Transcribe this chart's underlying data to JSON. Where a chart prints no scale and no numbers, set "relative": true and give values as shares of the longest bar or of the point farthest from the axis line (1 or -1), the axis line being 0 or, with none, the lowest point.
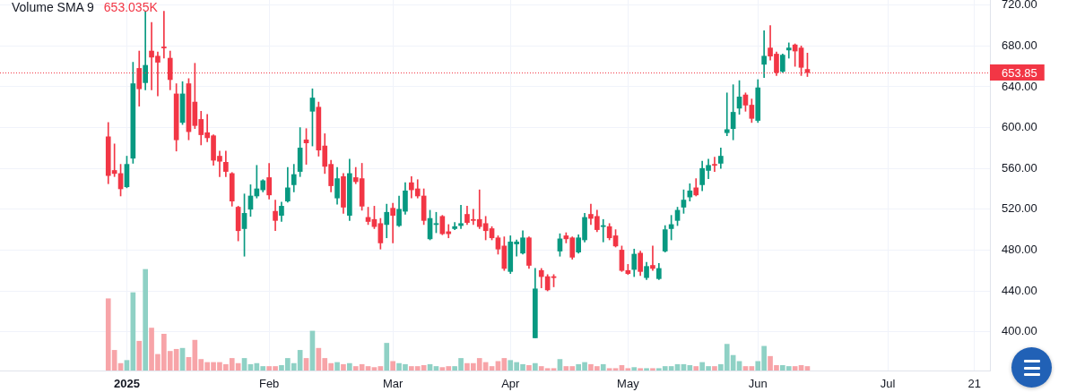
{
  "chart_data": [
    {
      "type": "candlestick",
      "categories": [
        null,
        null,
        null,
        null,
        null,
        null,
        null,
        null,
        null,
        null,
        null,
        null,
        null,
        null,
        null,
        null,
        null,
        null,
        null,
        null,
        "2025",
        null,
        null,
        null,
        null,
        null,
        null,
        null,
        null,
        null,
        null,
        null,
        null,
        null,
        null,
        null,
        null,
        null,
        null,
        null,
        null,
        null,
        null,
        "Feb",
        null,
        null,
        null,
        null,
        null,
        null,
        null,
        null,
        null,
        null,
        null,
        null,
        null,
        null,
        null,
        null,
        null,
        null,
        null,
        "Mar",
        null,
        null,
        null,
        null,
        null,
        null,
        null,
        null,
        null,
        null,
        null,
        null,
        null,
        null,
        null,
        null,
        null,
        null,
        "Apr",
        null,
        null,
        null,
        null,
        null,
        null,
        null,
        null,
        null,
        null,
        null,
        null,
        null,
        null,
        null,
        null,
        null,
        null,
        "May",
        null,
        null,
        null,
        null,
        null,
        null,
        null,
        null,
        null,
        null,
        null,
        null,
        null,
        null,
        null,
        null,
        null,
        null,
        null,
        null,
        "Jun",
        null,
        null,
        null,
        null,
        null,
        null,
        null,
        null,
        null,
        null,
        null,
        null,
        null,
        null,
        null,
        null,
        null,
        null,
        null,
        null,
        "Jul",
        null,
        null,
        null,
        null,
        null,
        null,
        null,
        null,
        null,
        null,
        null,
        null,
        null,
        "21",
        null,
        null
      ],
      "ohlc": [
        null,
        null,
        null,
        null,
        null,
        null,
        null,
        null,
        null,
        null,
        null,
        null,
        null,
        null,
        null,
        null,
        null,
        [
          591,
          605,
          545,
          553
        ],
        [
          558,
          584,
          552,
          555
        ],
        [
          555,
          564,
          533,
          540
        ],
        [
          542,
          572,
          541,
          564
        ],
        [
          570,
          664,
          565,
          643
        ],
        [
          658,
          675,
          621,
          638
        ],
        [
          644,
          714,
          637,
          661
        ],
        [
          675,
          703,
          637,
          669
        ],
        [
          670,
          674,
          631,
          664
        ],
        [
          679,
          714,
          668,
          678
        ],
        [
          668,
          675,
          637,
          647
        ],
        [
          633,
          643,
          577,
          588
        ],
        [
          605,
          645,
          603,
          633
        ],
        [
          643,
          648,
          588,
          596
        ],
        [
          625,
          663,
          599,
          602
        ],
        [
          608,
          616,
          583,
          593
        ],
        [
          595,
          613,
          586,
          590
        ],
        [
          592,
          593,
          563,
          568
        ],
        [
          572,
          577,
          552,
          567
        ],
        [
          566,
          577,
          552,
          557
        ],
        [
          555,
          556,
          523,
          528
        ],
        [
          522,
          523,
          489,
          499
        ],
        [
          501,
          535,
          474,
          516
        ],
        [
          520,
          544,
          513,
          533
        ],
        [
          533,
          563,
          531,
          540
        ],
        [
          539,
          549,
          537,
          548
        ],
        [
          551,
          565,
          530,
          534
        ],
        [
          518,
          529,
          499,
          509
        ],
        [
          514,
          527,
          508,
          523
        ],
        [
          528,
          561,
          527,
          541
        ],
        [
          544,
          564,
          537,
          554
        ],
        [
          557,
          600,
          552,
          580
        ],
        [
          588,
          599,
          564,
          585
        ],
        [
          616,
          638,
          582,
          629
        ],
        [
          620,
          625,
          572,
          578
        ],
        [
          582,
          594,
          555,
          562
        ],
        [
          564,
          568,
          537,
          543
        ],
        [
          531,
          561,
          525,
          550
        ],
        [
          552,
          555,
          516,
          522
        ],
        [
          514,
          569,
          509,
          555
        ],
        [
          551,
          561,
          545,
          547
        ],
        [
          550,
          565,
          519,
          523
        ],
        [
          512,
          522,
          505,
          508
        ],
        [
          510,
          523,
          501,
          503
        ],
        [
          506,
          511,
          481,
          487
        ],
        [
          505,
          525,
          492,
          517
        ],
        [
          521,
          526,
          487,
          514
        ],
        [
          504,
          533,
          503,
          520
        ],
        [
          518,
          546,
          515,
          538
        ],
        [
          546,
          552,
          531,
          539
        ],
        [
          540,
          549,
          531,
          533
        ],
        [
          533,
          540,
          505,
          509
        ],
        [
          491,
          519,
          490,
          511
        ],
        [
          505,
          517,
          497,
          506
        ],
        [
          513,
          514,
          495,
          496
        ],
        [
          498,
          505,
          492,
          496
        ],
        [
          501,
          507,
          500,
          503
        ],
        [
          504,
          524,
          501,
          506
        ],
        [
          515,
          523,
          505,
          507
        ],
        [
          510,
          520,
          505,
          509
        ],
        [
          510,
          539,
          501,
          503
        ],
        [
          506,
          513,
          490,
          499
        ],
        [
          501,
          503,
          490,
          492
        ],
        [
          492,
          494,
          476,
          481
        ],
        [
          484,
          493,
          460,
          462
        ],
        [
          459,
          494,
          457,
          488
        ],
        [
          486,
          490,
          474,
          488
        ],
        [
          477,
          499,
          476,
          492
        ],
        [
          492,
          493,
          462,
          465
        ],
        [
          394,
          462,
          394,
          442
        ],
        [
          460,
          462,
          443,
          454
        ],
        [
          454,
          456,
          440,
          441
        ],
        [
          454,
          456,
          444,
          453
        ],
        [
          479,
          496,
          474,
          491
        ],
        [
          494,
          497,
          487,
          491
        ],
        [
          492,
          493,
          471,
          473
        ],
        [
          478,
          495,
          477,
          492
        ],
        [
          490,
          516,
          488,
          512
        ],
        [
          515,
          525,
          505,
          511
        ],
        [
          513,
          519,
          498,
          500
        ],
        [
          503,
          510,
          488,
          504
        ],
        [
          503,
          506,
          490,
          492
        ],
        [
          494,
          500,
          483,
          484
        ],
        [
          480,
          484,
          459,
          460
        ],
        [
          460,
          466,
          456,
          457
        ],
        [
          461,
          481,
          454,
          476
        ],
        [
          477,
          479,
          455,
          459
        ],
        [
          453,
          468,
          451,
          464
        ],
        [
          465,
          484,
          460,
          462
        ],
        [
          452,
          467,
          451,
          462
        ],
        [
          479,
          504,
          478,
          500
        ],
        [
          501,
          514,
          490,
          505
        ],
        [
          509,
          522,
          504,
          519
        ],
        [
          522,
          539,
          516,
          529
        ],
        [
          532,
          545,
          528,
          538
        ],
        [
          541,
          550,
          533,
          534
        ],
        [
          544,
          567,
          538,
          560
        ],
        [
          558,
          569,
          550,
          563
        ],
        [
          564,
          571,
          557,
          563
        ],
        [
          565,
          580,
          560,
          572
        ],
        [
          595,
          634,
          592,
          598
        ],
        [
          599,
          642,
          588,
          615
        ],
        [
          619,
          646,
          613,
          630
        ],
        [
          632,
          634,
          616,
          622
        ],
        [
          622,
          628,
          605,
          609
        ],
        [
          607,
          647,
          605,
          639
        ],
        [
          662,
          695,
          649,
          670
        ],
        [
          678,
          700,
          666,
          670
        ],
        [
          672,
          674,
          651,
          654
        ],
        [
          655,
          672,
          654,
          671
        ],
        [
          676,
          683,
          668,
          678
        ],
        [
          681,
          682,
          660,
          675
        ],
        [
          678,
          680,
          651,
          659
        ],
        [
          657,
          673,
          650,
          653.85
        ],
        null,
        null,
        null,
        null,
        null,
        null,
        null,
        null,
        null,
        null,
        null,
        null,
        null,
        null,
        null,
        null,
        null,
        null,
        null,
        null,
        null,
        null,
        null,
        null,
        null,
        null,
        null,
        null,
        null
      ],
      "colors": [
        null,
        null,
        null,
        null,
        null,
        null,
        null,
        null,
        null,
        null,
        null,
        null,
        null,
        null,
        null,
        null,
        null,
        "#f23645",
        "#f23645",
        "#f23645",
        "#089981",
        "#089981",
        "#f23645",
        "#089981",
        "#f23645",
        "#f23645",
        "#f23645",
        "#f23645",
        "#f23645",
        "#089981",
        "#f23645",
        "#f23645",
        "#f23645",
        "#f23645",
        "#f23645",
        "#f23645",
        "#f23645",
        "#f23645",
        "#f23645",
        "#089981",
        "#089981",
        "#089981",
        "#089981",
        "#f23645",
        "#f23645",
        "#089981",
        "#089981",
        "#089981",
        "#089981",
        "#f23645",
        "#089981",
        "#f23645",
        "#f23645",
        "#f23645",
        "#089981",
        "#f23645",
        "#089981",
        "#f23645",
        "#f23645",
        "#f23645",
        "#f23645",
        "#f23645",
        "#089981",
        "#f23645",
        "#089981",
        "#089981",
        "#f23645",
        "#f23645",
        "#f23645",
        "#089981",
        "#089981",
        "#f23645",
        "#f23645",
        "#089981",
        "#089981",
        "#f23645",
        "#f23645",
        "#f23645",
        "#f23645",
        "#f23645",
        "#f23645",
        "#f23645",
        "#089981",
        "#089981",
        "#089981",
        "#f23645",
        "#089981",
        "#f23645",
        "#f23645",
        "#f23645",
        "#089981",
        "#f23645",
        "#f23645",
        "#089981",
        "#089981",
        "#f23645",
        "#f23645",
        "#089981",
        "#f23645",
        "#f23645",
        "#f23645",
        "#f23645",
        "#089981",
        "#f23645",
        "#089981",
        "#f23645",
        "#089981",
        "#089981",
        "#089981",
        "#089981",
        "#089981",
        "#089981",
        "#f23645",
        "#089981",
        "#089981",
        "#f23645",
        "#089981",
        "#089981",
        "#089981",
        "#089981",
        "#f23645",
        "#f23645",
        "#089981",
        "#089981",
        "#f23645",
        "#f23645",
        "#089981",
        "#089981",
        "#f23645",
        "#f23645",
        "#f23645",
        null,
        null,
        null,
        null,
        null,
        null,
        null,
        null,
        null,
        null,
        null,
        null,
        null,
        null,
        null,
        null,
        null,
        null,
        null,
        null,
        null,
        null,
        null,
        null,
        null,
        null,
        null,
        null,
        null
      ],
      "ylim": [
        362,
        725
      ],
      "yticks": [
        {
          "value": 400,
          "label": "400.00"
        },
        {
          "value": 440,
          "label": "440.00"
        },
        {
          "value": 480,
          "label": "480.00"
        },
        {
          "value": 520,
          "label": "520.00"
        },
        {
          "value": 560,
          "label": "560.00"
        },
        {
          "value": 600,
          "label": "600.00"
        },
        {
          "value": 640,
          "label": "640.00"
        },
        {
          "value": 680,
          "label": "680.00"
        },
        {
          "value": 720,
          "label": "720.00"
        }
      ],
      "grid": true,
      "ref_lines": [
        {
          "axis": "y",
          "value": 653.85,
          "label": "653.85",
          "color": "#f23645",
          "line_style": "dotted"
        }
      ]
    },
    {
      "type": "bar",
      "title": "Volume SMA 9",
      "annotations": [
        "653.035K"
      ],
      "relative": true,
      "categories": [
        null,
        null,
        null,
        null,
        null,
        null,
        null,
        null,
        null,
        null,
        null,
        null,
        null,
        null,
        null,
        null,
        null,
        null,
        null,
        null,
        null,
        null,
        null,
        null,
        null,
        null,
        null,
        null,
        null,
        null,
        null,
        null,
        null,
        null,
        null,
        null,
        null,
        null,
        null,
        null,
        null,
        null,
        null,
        null,
        null,
        null,
        null,
        null,
        null,
        null,
        null,
        null,
        null,
        null,
        null,
        null,
        null,
        null,
        null,
        null,
        null,
        null,
        null,
        null,
        null,
        null,
        null,
        null,
        null,
        null,
        null,
        null,
        null,
        null,
        null,
        null,
        null,
        null,
        null,
        null,
        null,
        null,
        null,
        null,
        null,
        null,
        null,
        null,
        null,
        null,
        null,
        null,
        null,
        null,
        null,
        null,
        null,
        null,
        null,
        null,
        null,
        null,
        null,
        null,
        null,
        null,
        null,
        null,
        null,
        null,
        null,
        null,
        null,
        null,
        null,
        null,
        null,
        null,
        null,
        null,
        null,
        null,
        null,
        null,
        null,
        null,
        null,
        null,
        null,
        null,
        null,
        null,
        null,
        null,
        null,
        null,
        null,
        null,
        null,
        null,
        null,
        null,
        null,
        null,
        null,
        null,
        null,
        null,
        null,
        null,
        null,
        null,
        null,
        null,
        null,
        null,
        null,
        null,
        null,
        null
      ],
      "values": [
        null,
        null,
        null,
        null,
        null,
        null,
        null,
        null,
        null,
        null,
        null,
        null,
        null,
        null,
        null,
        null,
        null,
        0.71,
        0.2,
        0.07,
        0.1,
        0.77,
        0.29,
        1,
        0.42,
        0.16,
        0.36,
        0.19,
        0.21,
        0.22,
        0.13,
        0.3,
        0.11,
        0.08,
        0.08,
        0.08,
        0.06,
        0.12,
        0.07,
        0.12,
        0.06,
        0.07,
        0.04,
        0.04,
        0.04,
        0.05,
        0.12,
        0.07,
        0.2,
        0.12,
        0.39,
        0.22,
        0.12,
        0.07,
        0.08,
        0.06,
        0.07,
        0.04,
        0.06,
        0.04,
        0.03,
        0.04,
        0.27,
        0.09,
        0.07,
        0.06,
        0.04,
        0.04,
        0.05,
        0.06,
        0.04,
        0.03,
        0.04,
        0.04,
        0.12,
        0.07,
        0.07,
        0.12,
        0.08,
        0.04,
        0.09,
        0.12,
        0.1,
        0.08,
        0.06,
        0.05,
        0.07,
        0.04,
        0.02,
        0.02,
        0.11,
        0.04,
        0.04,
        0.06,
        0.08,
        0.06,
        0.04,
        0.06,
        0.02,
        0.02,
        0.05,
        0.02,
        0.03,
        0.02,
        0.02,
        0.02,
        0.02,
        0.04,
        0.04,
        0.06,
        0.06,
        0.05,
        0.04,
        0.08,
        0.04,
        0.04,
        0.06,
        0.26,
        0.15,
        0.09,
        0.04,
        0.04,
        0.09,
        0.24,
        0.14,
        0.05,
        0.05,
        0.04,
        0.04,
        0.05,
        0.04,
        null,
        null,
        null,
        null,
        null,
        null,
        null,
        null,
        null,
        null,
        null,
        null,
        null,
        null,
        null,
        null,
        null,
        null,
        null,
        null,
        null,
        null,
        null,
        null,
        null,
        null,
        null,
        null,
        null
      ],
      "colors": [
        null,
        null,
        null,
        null,
        null,
        null,
        null,
        null,
        null,
        null,
        null,
        null,
        null,
        null,
        null,
        null,
        null,
        "#f7a4a8",
        "#f7a4a8",
        "#f7a4a8",
        "#8fd1c5",
        "#8fd1c5",
        "#f7a4a8",
        "#8fd1c5",
        "#f7a4a8",
        "#f7a4a8",
        "#f7a4a8",
        "#f7a4a8",
        "#f7a4a8",
        "#8fd1c5",
        "#f7a4a8",
        "#f7a4a8",
        "#f7a4a8",
        "#f7a4a8",
        "#f7a4a8",
        "#f7a4a8",
        "#f7a4a8",
        "#f7a4a8",
        "#f7a4a8",
        "#8fd1c5",
        "#8fd1c5",
        "#8fd1c5",
        "#8fd1c5",
        "#f7a4a8",
        "#f7a4a8",
        "#8fd1c5",
        "#8fd1c5",
        "#8fd1c5",
        "#8fd1c5",
        "#f7a4a8",
        "#8fd1c5",
        "#f7a4a8",
        "#f7a4a8",
        "#f7a4a8",
        "#8fd1c5",
        "#f7a4a8",
        "#8fd1c5",
        "#f7a4a8",
        "#f7a4a8",
        "#f7a4a8",
        "#f7a4a8",
        "#f7a4a8",
        "#8fd1c5",
        "#f7a4a8",
        "#8fd1c5",
        "#8fd1c5",
        "#f7a4a8",
        "#f7a4a8",
        "#f7a4a8",
        "#8fd1c5",
        "#8fd1c5",
        "#f7a4a8",
        "#f7a4a8",
        "#8fd1c5",
        "#8fd1c5",
        "#f7a4a8",
        "#f7a4a8",
        "#f7a4a8",
        "#f7a4a8",
        "#f7a4a8",
        "#f7a4a8",
        "#f7a4a8",
        "#8fd1c5",
        "#8fd1c5",
        "#8fd1c5",
        "#f7a4a8",
        "#8fd1c5",
        "#f7a4a8",
        "#f7a4a8",
        "#f7a4a8",
        "#8fd1c5",
        "#f7a4a8",
        "#f7a4a8",
        "#8fd1c5",
        "#8fd1c5",
        "#f7a4a8",
        "#f7a4a8",
        "#8fd1c5",
        "#f7a4a8",
        "#f7a4a8",
        "#f7a4a8",
        "#f7a4a8",
        "#8fd1c5",
        "#f7a4a8",
        "#8fd1c5",
        "#f7a4a8",
        "#8fd1c5",
        "#8fd1c5",
        "#8fd1c5",
        "#8fd1c5",
        "#8fd1c5",
        "#8fd1c5",
        "#f7a4a8",
        "#8fd1c5",
        "#8fd1c5",
        "#f7a4a8",
        "#8fd1c5",
        "#8fd1c5",
        "#8fd1c5",
        "#8fd1c5",
        "#f7a4a8",
        "#f7a4a8",
        "#8fd1c5",
        "#8fd1c5",
        "#f7a4a8",
        "#f7a4a8",
        "#8fd1c5",
        "#8fd1c5",
        "#f7a4a8",
        "#f7a4a8",
        "#f7a4a8",
        null,
        null,
        null,
        null,
        null,
        null,
        null,
        null,
        null,
        null,
        null,
        null,
        null,
        null,
        null,
        null,
        null,
        null,
        null,
        null,
        null,
        null,
        null,
        null,
        null,
        null,
        null,
        null,
        null
      ]
    }
  ]
}
